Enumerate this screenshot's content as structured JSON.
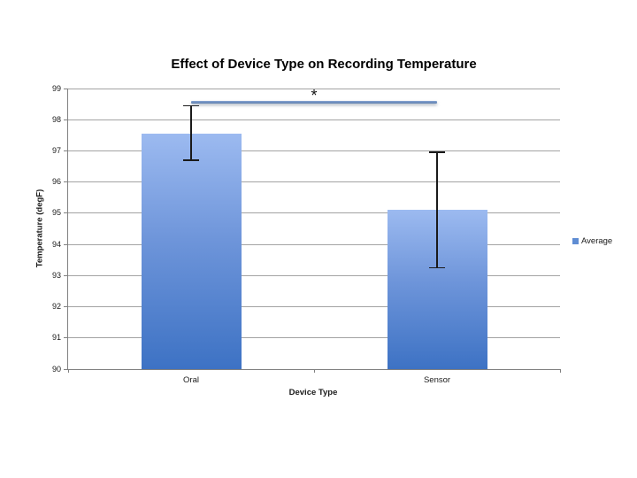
{
  "page": {
    "background": "#ffffff"
  },
  "chart_data": {
    "type": "bar",
    "title": "Effect of Device Type on Recording Temperature",
    "xlabel": "Device Type",
    "ylabel": "Temperature (degF)",
    "categories": [
      "Oral",
      "Sensor"
    ],
    "series": [
      {
        "name": "Average",
        "values": [
          97.55,
          95.1
        ]
      }
    ],
    "error_bars": [
      {
        "category": "Oral",
        "low": 96.7,
        "high": 98.45
      },
      {
        "category": "Sensor",
        "low": 93.25,
        "high": 96.95
      }
    ],
    "ylim": [
      90,
      99
    ],
    "ytick_step": 1,
    "yticks": [
      90,
      91,
      92,
      93,
      94,
      95,
      96,
      97,
      98,
      99
    ],
    "grid": true,
    "legend": {
      "position": "right",
      "entries": [
        "Average"
      ]
    },
    "annotation": {
      "label": "*",
      "y": 98.55,
      "spans": [
        "Oral",
        "Sensor"
      ]
    }
  },
  "colors": {
    "bar_top": "#9cbaf0",
    "bar_mid": "#6e95da",
    "bar_bottom": "#3d72c4",
    "legend_marker": "#5f8dd3",
    "sig_line_top": "#87a5d2",
    "sig_line_bottom": "#5c7dad",
    "gridline": "#a3a3a3",
    "axis": "#808080",
    "error_bar": "#1a1a1a",
    "text": "#1a1a1a"
  }
}
